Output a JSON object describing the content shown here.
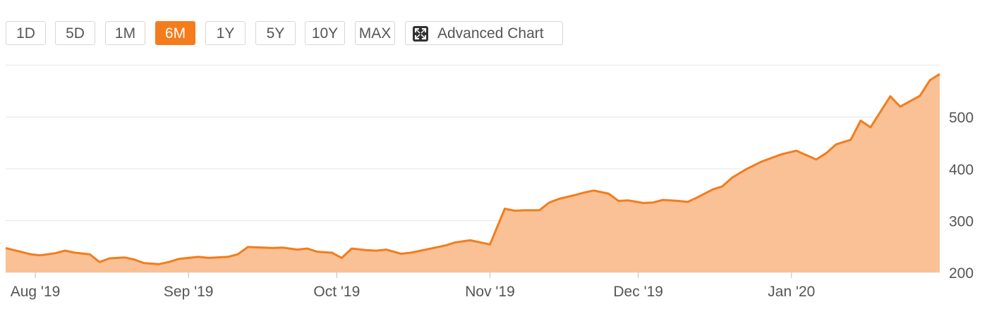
{
  "range_selector": {
    "buttons": [
      "1D",
      "5D",
      "1M",
      "6M",
      "1Y",
      "5Y",
      "10Y",
      "MAX"
    ],
    "active": "6M",
    "advanced_chart_label": "Advanced Chart"
  },
  "colors": {
    "accent": "#f47c1c",
    "fill": "#f9c195",
    "grid": "#e6e6e6"
  },
  "chart_data": {
    "type": "area",
    "title": "",
    "xlabel": "",
    "ylabel": "",
    "ylim": [
      200,
      590
    ],
    "yticks": [
      200,
      300,
      400,
      500
    ],
    "ytick_labels": [
      "200",
      "300",
      "400",
      "500"
    ],
    "xticks": [
      "2019-08-01",
      "2019-09-01",
      "2019-10-01",
      "2019-11-01",
      "2019-12-01",
      "2020-01-01"
    ],
    "xtick_labels": [
      "Aug '19",
      "Sep '19",
      "Oct '19",
      "Nov '19",
      "Dec '19",
      "Jan '20"
    ],
    "grid": true,
    "x": [
      "2019-07-26",
      "2019-07-29",
      "2019-07-31",
      "2019-08-02",
      "2019-08-05",
      "2019-08-07",
      "2019-08-09",
      "2019-08-12",
      "2019-08-14",
      "2019-08-16",
      "2019-08-19",
      "2019-08-21",
      "2019-08-23",
      "2019-08-26",
      "2019-08-28",
      "2019-08-30",
      "2019-09-03",
      "2019-09-05",
      "2019-09-09",
      "2019-09-11",
      "2019-09-13",
      "2019-09-16",
      "2019-09-18",
      "2019-09-20",
      "2019-09-23",
      "2019-09-25",
      "2019-09-27",
      "2019-09-30",
      "2019-10-02",
      "2019-10-04",
      "2019-10-07",
      "2019-10-09",
      "2019-10-11",
      "2019-10-14",
      "2019-10-16",
      "2019-10-18",
      "2019-10-21",
      "2019-10-23",
      "2019-10-25",
      "2019-10-28",
      "2019-10-30",
      "2019-11-01",
      "2019-11-04",
      "2019-11-06",
      "2019-11-08",
      "2019-11-11",
      "2019-11-13",
      "2019-11-15",
      "2019-11-18",
      "2019-11-20",
      "2019-11-22",
      "2019-11-25",
      "2019-11-27",
      "2019-11-29",
      "2019-12-02",
      "2019-12-04",
      "2019-12-06",
      "2019-12-09",
      "2019-12-11",
      "2019-12-13",
      "2019-12-16",
      "2019-12-18",
      "2019-12-20",
      "2019-12-23",
      "2019-12-26",
      "2019-12-30",
      "2020-01-02",
      "2020-01-06",
      "2020-01-08",
      "2020-01-10",
      "2020-01-13",
      "2020-01-15",
      "2020-01-17",
      "2020-01-21",
      "2020-01-23",
      "2020-01-27",
      "2020-01-29",
      "2020-01-31"
    ],
    "series": [
      {
        "values": [
          247,
          240,
          235,
          233,
          237,
          242,
          238,
          235,
          220,
          227,
          229,
          225,
          218,
          216,
          220,
          226,
          230,
          228,
          230,
          235,
          249,
          248,
          247,
          248,
          244,
          246,
          240,
          238,
          228,
          246,
          243,
          242,
          244,
          236,
          238,
          242,
          248,
          252,
          258,
          262,
          258,
          254,
          323,
          319,
          320,
          320,
          335,
          342,
          349,
          354,
          358,
          352,
          338,
          339,
          334,
          335,
          340,
          338,
          336,
          345,
          360,
          366,
          383,
          400,
          414,
          428,
          435,
          418,
          430,
          447,
          456,
          493,
          480,
          540,
          520,
          541,
          571,
          583
        ]
      }
    ]
  }
}
